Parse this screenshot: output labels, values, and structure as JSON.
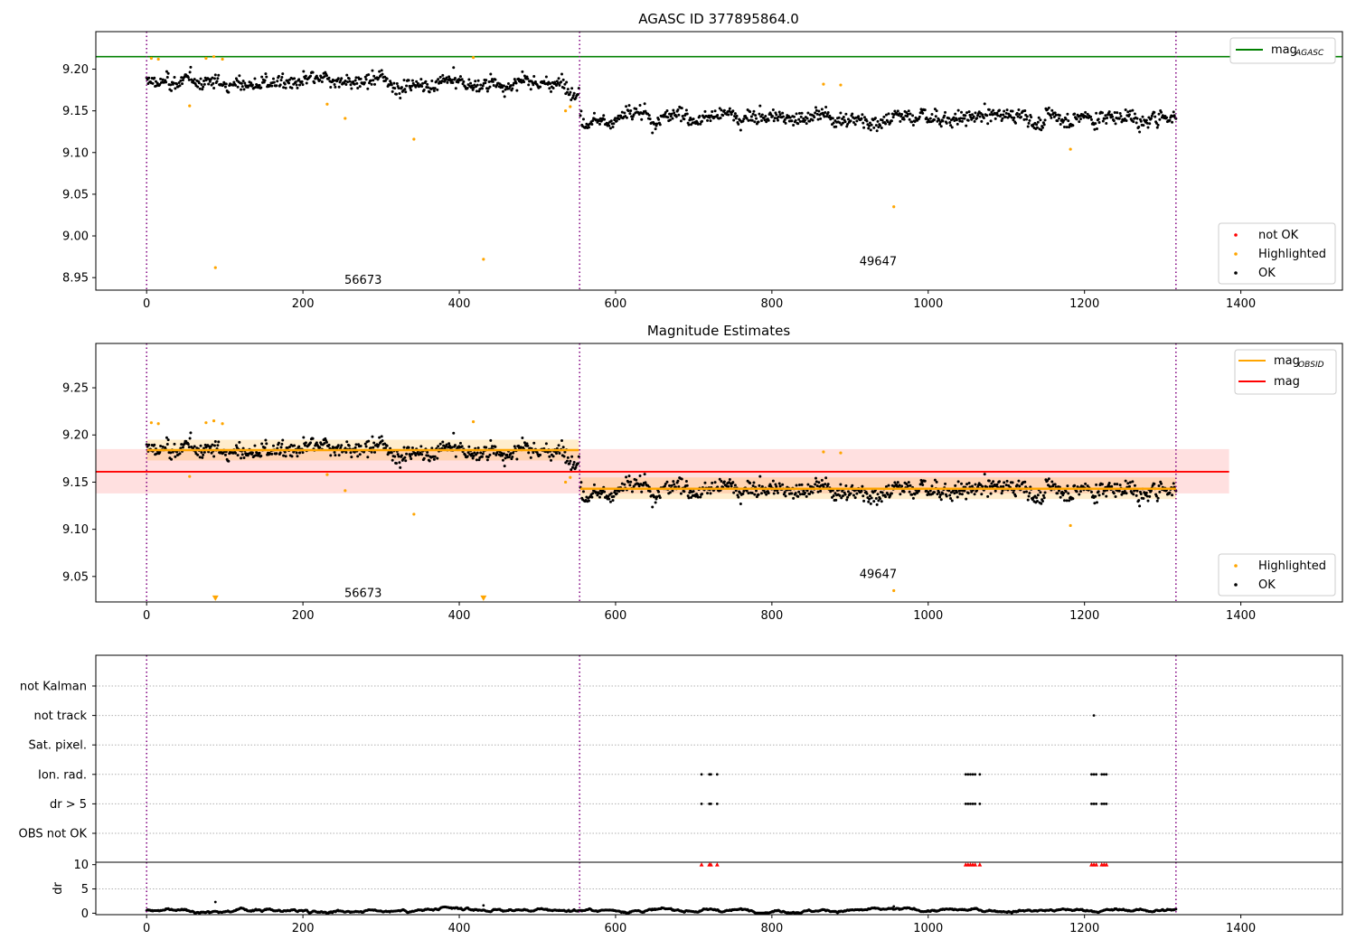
{
  "chart_data": [
    {
      "type": "scatter",
      "title": "AGASC ID 377895864.0",
      "xlim": [
        -65,
        1530
      ],
      "ylim": [
        8.935,
        9.245
      ],
      "xticks": [
        0,
        200,
        400,
        600,
        800,
        1000,
        1200,
        1400
      ],
      "xtick_labels": [
        "0",
        "200",
        "400",
        "600",
        "800",
        "1000",
        "1200",
        "1400"
      ],
      "yticks": [
        8.95,
        9.0,
        9.05,
        9.1,
        9.15,
        9.2
      ],
      "ytick_labels": [
        "8.95",
        "9.00",
        "9.05",
        "9.10",
        "9.15",
        "9.20"
      ],
      "vlines": [
        0,
        554,
        1317
      ],
      "obsid_labels": [
        {
          "text": "56673",
          "x": 277,
          "y": 8.947
        },
        {
          "text": "49647",
          "x": 936,
          "y": 8.969
        }
      ],
      "hlines": [
        {
          "name": "mag_AGASC",
          "y": 9.215,
          "color": "#008000"
        }
      ],
      "legend_lines": [
        {
          "label": "mag",
          "sub": "AGASC",
          "color": "#008000"
        }
      ],
      "legend_markers": [
        {
          "label": "not OK",
          "color": "#ff0000"
        },
        {
          "label": "Highlighted",
          "color": "#ffa500"
        },
        {
          "label": "OK",
          "color": "#000000"
        }
      ],
      "legend_placement": [
        "top-right",
        "bottom-right"
      ],
      "series": [
        {
          "name": "Highlighted",
          "color": "#ffa500",
          "points": [
            [
              6,
              9.213
            ],
            [
              15,
              9.212
            ],
            [
              55,
              9.156
            ],
            [
              76,
              9.213
            ],
            [
              86,
              9.215
            ],
            [
              88,
              8.962
            ],
            [
              97,
              9.212
            ],
            [
              231,
              9.158
            ],
            [
              254,
              9.141
            ],
            [
              342,
              9.116
            ],
            [
              418,
              9.214
            ],
            [
              431,
              8.972
            ],
            [
              536,
              9.15
            ],
            [
              542,
              9.155
            ],
            [
              866,
              9.182
            ],
            [
              888,
              9.181
            ],
            [
              956,
              9.035
            ],
            [
              1182,
              9.104
            ]
          ]
        },
        {
          "name": "OK",
          "color": "#000000",
          "segments": [
            {
              "x0": 0,
              "x1": 553,
              "mean": 9.184,
              "slope": -5e-06,
              "spread": 0.009,
              "wiggle": 0.006,
              "n": 560
            },
            {
              "x0": 555,
              "x1": 1317,
              "mean": 9.143,
              "slope": 0.0,
              "spread": 0.01,
              "wiggle": 0.007,
              "n": 770
            }
          ]
        }
      ]
    },
    {
      "type": "scatter",
      "title": "Magnitude Estimates",
      "xlim": [
        -65,
        1530
      ],
      "ylim": [
        9.023,
        9.297
      ],
      "xticks": [
        0,
        200,
        400,
        600,
        800,
        1000,
        1200,
        1400
      ],
      "xtick_labels": [
        "0",
        "200",
        "400",
        "600",
        "800",
        "1000",
        "1200",
        "1400"
      ],
      "yticks": [
        9.05,
        9.1,
        9.15,
        9.2,
        9.25
      ],
      "ytick_labels": [
        "9.05",
        "9.10",
        "9.15",
        "9.20",
        "9.25"
      ],
      "vlines": [
        0,
        554,
        1317
      ],
      "obsid_labels": [
        {
          "text": "56673",
          "x": 277,
          "y": 9.032
        },
        {
          "text": "49647",
          "x": 936,
          "y": 9.052
        }
      ],
      "mag": {
        "value": 9.161,
        "band": [
          9.138,
          9.185
        ],
        "x0": -65,
        "x1": 1385,
        "color": "#ff0000"
      },
      "mag_obsid": [
        {
          "x0": 0,
          "x1": 553,
          "value": 9.184,
          "band": [
            9.173,
            9.195
          ]
        },
        {
          "x0": 555,
          "x1": 1317,
          "value": 9.143,
          "band": [
            9.132,
            9.155
          ]
        }
      ],
      "legend_lines": [
        {
          "label": "mag",
          "sub": "OBSID",
          "color": "#ffa500"
        },
        {
          "label": "mag",
          "sub": "",
          "color": "#ff0000"
        }
      ],
      "legend_markers": [
        {
          "label": "Highlighted",
          "color": "#ffa500"
        },
        {
          "label": "OK",
          "color": "#000000"
        }
      ],
      "legend_placement": [
        "top-right",
        "bottom-right"
      ],
      "series": [
        {
          "name": "Highlighted",
          "color": "#ffa500",
          "points": [
            [
              6,
              9.213
            ],
            [
              15,
              9.212
            ],
            [
              55,
              9.156
            ],
            [
              76,
              9.213
            ],
            [
              86,
              9.215
            ],
            [
              97,
              9.212
            ],
            [
              231,
              9.158
            ],
            [
              254,
              9.141
            ],
            [
              342,
              9.116
            ],
            [
              418,
              9.214
            ],
            [
              536,
              9.15
            ],
            [
              542,
              9.155
            ],
            [
              866,
              9.182
            ],
            [
              888,
              9.181
            ],
            [
              956,
              9.035
            ],
            [
              1182,
              9.104
            ]
          ]
        },
        {
          "name": "Highlighted (below range)",
          "color": "#ffa500",
          "marker": "triangle-down",
          "points": [
            [
              88,
              9.027
            ],
            [
              431,
              9.027
            ]
          ]
        },
        {
          "name": "OK",
          "color": "#000000",
          "segments": [
            {
              "x0": 0,
              "x1": 553,
              "mean": 9.184,
              "slope": -5e-06,
              "spread": 0.009,
              "wiggle": 0.006,
              "n": 560
            },
            {
              "x0": 555,
              "x1": 1317,
              "mean": 9.143,
              "slope": 0.0,
              "spread": 0.01,
              "wiggle": 0.007,
              "n": 770
            }
          ]
        }
      ]
    },
    {
      "type": "scatter",
      "title": "",
      "xlim": [
        -65,
        1530
      ],
      "categories": [
        "not Kalman",
        "not track",
        "Sat. pixel.",
        "Ion. rad.",
        "dr > 5",
        "OBS not OK"
      ],
      "vlines": [
        0,
        554,
        1317
      ],
      "flags": {
        "not track": [
          1212
        ],
        "Ion. rad.": [
          710,
          720,
          722,
          730,
          1048,
          1051,
          1054,
          1057,
          1060,
          1066,
          1209,
          1212,
          1215,
          1222,
          1225,
          1228
        ],
        "dr > 5": [
          710,
          720,
          722,
          730,
          1048,
          1051,
          1054,
          1057,
          1060,
          1066,
          1209,
          1212,
          1215,
          1222,
          1225,
          1228
        ]
      }
    },
    {
      "type": "scatter",
      "title": "",
      "ylabel": "dr",
      "xlim": [
        -65,
        1530
      ],
      "ylim": [
        -0.3,
        10.5
      ],
      "xticks": [
        0,
        200,
        400,
        600,
        800,
        1000,
        1200,
        1400
      ],
      "xtick_labels": [
        "0",
        "200",
        "400",
        "600",
        "800",
        "1000",
        "1200",
        "1400"
      ],
      "yticks": [
        0,
        5,
        10
      ],
      "ytick_labels": [
        "0",
        "5",
        "10"
      ],
      "vlines": [
        0,
        554,
        1317
      ],
      "dr": {
        "x0": 0,
        "x1": 1317,
        "base": 0.6,
        "amp": 0.35,
        "n": 1330
      },
      "dr_outliers": [
        [
          88,
          2.3
        ],
        [
          431,
          1.6
        ],
        [
          956,
          1.4
        ]
      ],
      "capped": {
        "value": 10,
        "color": "#ff0000",
        "x": [
          710,
          720,
          722,
          730,
          1048,
          1051,
          1054,
          1057,
          1060,
          1066,
          1209,
          1212,
          1215,
          1222,
          1225,
          1228
        ]
      }
    }
  ]
}
